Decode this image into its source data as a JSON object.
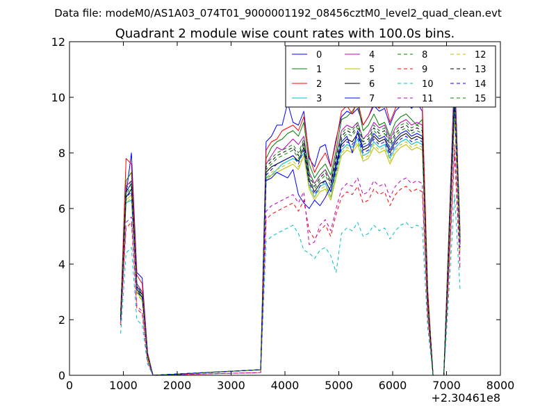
{
  "page": {
    "suptitle": "Data file: modeM0/AS1A03_074T01_9000001192_08456cztM0_level2_quad_clean.evt"
  },
  "chart_data": {
    "type": "line",
    "title": "Quadrant 2 module wise count rates with 100.0s bins.",
    "xlabel": "",
    "ylabel": "",
    "x_offset_label": "+2.30461e8",
    "xlim": [
      0,
      8000
    ],
    "ylim": [
      0,
      12
    ],
    "xticks": [
      0,
      1000,
      2000,
      3000,
      4000,
      5000,
      6000,
      7000,
      8000
    ],
    "yticks": [
      0,
      2,
      4,
      6,
      8,
      10,
      12
    ],
    "xtick_labels": [
      "0",
      "1000",
      "2000",
      "3000",
      "4000",
      "5000",
      "6000",
      "7000",
      "8000"
    ],
    "ytick_labels": [
      "0",
      "2",
      "4",
      "6",
      "8",
      "10",
      "12"
    ],
    "grid": false,
    "legend_position": "top-right",
    "x": [
      950,
      1050,
      1150,
      1250,
      1350,
      1450,
      1550,
      3550,
      3650,
      3750,
      3850,
      3950,
      4050,
      4150,
      4250,
      4350,
      4450,
      4550,
      4650,
      4750,
      4850,
      4950,
      5050,
      5150,
      5250,
      5350,
      5450,
      5550,
      5650,
      5750,
      5850,
      5950,
      6050,
      6150,
      6250,
      6350,
      6450,
      6550,
      6650,
      6750,
      6850,
      6950,
      7050,
      7150,
      7250
    ],
    "series": [
      {
        "name": "0",
        "color": "#0000ff",
        "dash": "solid",
        "values": [
          2.0,
          6.5,
          8.0,
          3.7,
          3.5,
          0.8,
          0.0,
          0.2,
          8.4,
          8.6,
          9.0,
          9.0,
          9.8,
          9.1,
          9.0,
          9.5,
          7.8,
          7.5,
          8.2,
          8.3,
          7.5,
          8.5,
          9.3,
          9.5,
          9.4,
          9.6,
          9.0,
          9.3,
          9.7,
          9.5,
          9.6,
          9.0,
          9.5,
          9.7,
          9.9,
          9.6,
          9.8,
          9.5,
          3.0,
          0.0,
          0.0,
          0.0,
          5.5,
          10.9,
          5.2
        ]
      },
      {
        "name": "1",
        "color": "#008000",
        "dash": "solid",
        "values": [
          2.3,
          7.0,
          7.3,
          3.3,
          3.0,
          0.6,
          0.0,
          0.2,
          7.8,
          8.2,
          8.4,
          8.5,
          8.7,
          8.8,
          8.6,
          9.1,
          7.6,
          7.1,
          7.4,
          7.6,
          7.2,
          8.1,
          9.2,
          9.3,
          9.5,
          9.8,
          8.8,
          9.0,
          9.4,
          9.0,
          9.1,
          8.6,
          9.1,
          9.3,
          9.4,
          9.2,
          9.0,
          9.2,
          2.8,
          0.0,
          0.0,
          0.0,
          5.0,
          10.6,
          4.9
        ]
      },
      {
        "name": "2",
        "color": "#ff0000",
        "dash": "solid",
        "values": [
          2.2,
          7.8,
          7.6,
          3.6,
          3.3,
          0.8,
          0.0,
          0.2,
          8.1,
          8.4,
          8.5,
          8.8,
          8.9,
          9.0,
          8.8,
          9.3,
          7.9,
          7.3,
          7.7,
          8.0,
          7.5,
          8.4,
          9.5,
          9.7,
          9.4,
          9.9,
          9.0,
          9.3,
          9.8,
          9.6,
          9.9,
          9.1,
          9.6,
          9.9,
          9.8,
          9.7,
          9.9,
          9.8,
          3.1,
          0.0,
          0.0,
          0.0,
          5.5,
          10.9,
          5.1
        ]
      },
      {
        "name": "3",
        "color": "#00bfbf",
        "dash": "solid",
        "values": [
          2.0,
          6.2,
          6.3,
          3.0,
          2.8,
          0.6,
          0.0,
          0.2,
          7.1,
          7.2,
          7.4,
          7.6,
          7.7,
          7.8,
          7.7,
          8.0,
          6.8,
          6.4,
          6.8,
          6.9,
          6.4,
          7.3,
          8.1,
          8.3,
          8.2,
          8.5,
          7.9,
          8.0,
          8.4,
          8.2,
          8.3,
          7.8,
          8.2,
          8.4,
          8.5,
          8.3,
          8.4,
          8.3,
          2.6,
          0.0,
          0.0,
          0.0,
          4.7,
          9.4,
          4.5
        ]
      },
      {
        "name": "4",
        "color": "#bf00bf",
        "dash": "solid",
        "values": [
          2.1,
          6.8,
          7.0,
          3.3,
          3.0,
          0.7,
          0.0,
          0.2,
          7.6,
          7.9,
          8.2,
          8.1,
          8.3,
          8.5,
          8.3,
          8.6,
          7.3,
          6.9,
          7.2,
          7.4,
          7.0,
          7.9,
          8.8,
          9.0,
          8.9,
          9.1,
          8.5,
          8.7,
          9.1,
          8.9,
          9.0,
          8.5,
          8.9,
          9.1,
          9.2,
          9.0,
          9.1,
          9.0,
          2.8,
          0.0,
          0.0,
          0.0,
          5.2,
          11.2,
          4.8
        ]
      },
      {
        "name": "5",
        "color": "#bfbf00",
        "dash": "solid",
        "values": [
          1.9,
          6.3,
          6.5,
          3.0,
          2.7,
          0.6,
          0.0,
          0.2,
          7.0,
          7.2,
          7.3,
          7.4,
          7.5,
          7.6,
          7.4,
          7.9,
          6.7,
          6.3,
          6.6,
          6.7,
          6.3,
          7.1,
          7.9,
          8.1,
          8.0,
          8.3,
          7.7,
          7.8,
          8.2,
          8.0,
          8.1,
          7.6,
          8.0,
          8.2,
          8.3,
          8.1,
          8.2,
          8.1,
          2.5,
          0.0,
          0.0,
          0.0,
          4.6,
          9.3,
          4.4
        ]
      },
      {
        "name": "6",
        "color": "#000000",
        "dash": "solid",
        "values": [
          2.0,
          6.4,
          6.7,
          3.1,
          2.8,
          0.7,
          0.0,
          0.2,
          7.3,
          7.5,
          7.6,
          7.7,
          7.8,
          7.9,
          7.7,
          8.2,
          7.0,
          6.6,
          6.9,
          7.0,
          6.6,
          7.5,
          8.3,
          8.5,
          8.4,
          8.7,
          8.1,
          8.2,
          8.6,
          8.4,
          8.5,
          8.0,
          8.4,
          8.6,
          8.7,
          8.5,
          8.6,
          8.5,
          2.7,
          0.0,
          0.0,
          0.0,
          4.9,
          9.8,
          4.7
        ]
      },
      {
        "name": "7",
        "color": "#0000ff",
        "dash": "solid",
        "values": [
          2.1,
          6.6,
          6.9,
          3.2,
          2.9,
          0.7,
          0.0,
          0.2,
          7.0,
          7.1,
          7.3,
          7.2,
          7.1,
          7.4,
          6.5,
          6.2,
          6.0,
          6.3,
          6.1,
          6.4,
          6.8,
          7.6,
          8.4,
          8.6,
          8.0,
          8.8,
          8.2,
          8.3,
          8.7,
          8.5,
          8.6,
          8.1,
          8.5,
          8.7,
          8.8,
          8.6,
          8.7,
          8.6,
          2.7,
          0.0,
          0.0,
          0.0,
          5.0,
          10.0,
          4.8
        ]
      },
      {
        "name": "8",
        "color": "#008000",
        "dash": "dashed",
        "values": [
          2.1,
          6.5,
          6.8,
          3.1,
          2.9,
          0.7,
          0.0,
          0.2,
          7.4,
          7.6,
          7.8,
          7.9,
          8.0,
          8.1,
          7.8,
          8.3,
          7.1,
          6.7,
          7.0,
          7.2,
          6.8,
          7.7,
          8.5,
          8.7,
          8.6,
          8.9,
          8.3,
          8.4,
          8.8,
          8.6,
          8.7,
          8.2,
          8.6,
          8.8,
          8.9,
          8.7,
          8.8,
          8.7,
          2.7,
          0.0,
          0.0,
          0.0,
          5.0,
          10.1,
          4.8
        ]
      },
      {
        "name": "9",
        "color": "#ff0000",
        "dash": "dashed",
        "values": [
          1.8,
          5.3,
          5.5,
          2.4,
          2.2,
          0.5,
          0.0,
          0.1,
          5.6,
          5.8,
          5.9,
          6.0,
          6.1,
          6.2,
          5.9,
          6.3,
          5.2,
          4.9,
          5.2,
          5.4,
          5.0,
          5.8,
          6.4,
          6.6,
          6.5,
          6.8,
          6.2,
          6.3,
          6.7,
          6.5,
          6.6,
          6.1,
          6.5,
          6.7,
          6.8,
          6.6,
          6.7,
          6.6,
          2.1,
          0.0,
          0.0,
          0.0,
          3.9,
          8.0,
          3.8
        ]
      },
      {
        "name": "10",
        "color": "#00bfbf",
        "dash": "dashed",
        "values": [
          1.5,
          4.4,
          4.6,
          2.0,
          1.8,
          0.4,
          0.0,
          0.1,
          4.8,
          5.0,
          5.1,
          5.2,
          5.3,
          5.4,
          5.1,
          4.5,
          4.4,
          4.2,
          4.5,
          4.6,
          4.3,
          3.7,
          5.1,
          5.3,
          5.2,
          5.5,
          5.0,
          5.1,
          5.4,
          5.2,
          5.3,
          4.9,
          5.2,
          5.4,
          5.5,
          5.3,
          5.4,
          5.3,
          1.7,
          0.0,
          0.0,
          0.0,
          3.2,
          6.5,
          3.1
        ]
      },
      {
        "name": "11",
        "color": "#bf00bf",
        "dash": "dashed",
        "values": [
          1.9,
          5.5,
          5.7,
          2.5,
          2.3,
          0.5,
          0.0,
          0.1,
          5.9,
          6.1,
          6.2,
          6.3,
          6.4,
          6.5,
          6.2,
          6.6,
          4.7,
          4.8,
          5.4,
          5.6,
          5.2,
          6.0,
          6.7,
          6.9,
          6.8,
          7.1,
          6.5,
          6.6,
          7.0,
          6.8,
          6.9,
          6.4,
          6.8,
          7.0,
          7.1,
          6.9,
          7.0,
          6.9,
          2.2,
          0.0,
          0.0,
          0.0,
          4.1,
          8.3,
          4.0
        ]
      },
      {
        "name": "12",
        "color": "#bfbf00",
        "dash": "dashed",
        "values": [
          2.0,
          6.2,
          6.4,
          2.9,
          2.7,
          0.6,
          0.0,
          0.2,
          7.1,
          7.3,
          7.4,
          7.5,
          7.6,
          7.7,
          7.5,
          7.9,
          6.8,
          6.4,
          6.7,
          6.8,
          6.4,
          7.2,
          8.0,
          8.2,
          8.1,
          8.4,
          7.8,
          7.9,
          8.3,
          8.1,
          8.2,
          7.7,
          8.1,
          8.3,
          8.4,
          8.2,
          8.3,
          8.2,
          2.6,
          0.0,
          0.0,
          0.0,
          4.7,
          9.5,
          4.5
        ]
      },
      {
        "name": "13",
        "color": "#000000",
        "dash": "dashed",
        "values": [
          2.1,
          6.6,
          6.9,
          3.2,
          2.9,
          0.7,
          0.0,
          0.2,
          7.5,
          7.7,
          7.9,
          8.0,
          8.1,
          8.2,
          7.9,
          8.4,
          7.2,
          6.8,
          7.1,
          7.3,
          6.9,
          7.8,
          8.6,
          8.8,
          8.7,
          9.0,
          8.4,
          8.5,
          8.9,
          8.7,
          8.8,
          8.3,
          8.7,
          8.9,
          9.0,
          8.8,
          8.9,
          8.8,
          2.8,
          0.0,
          0.0,
          0.0,
          5.1,
          10.3,
          4.9
        ]
      },
      {
        "name": "14",
        "color": "#0000ff",
        "dash": "dashed",
        "values": [
          2.0,
          6.4,
          6.6,
          3.0,
          2.8,
          0.7,
          0.0,
          0.2,
          7.2,
          7.4,
          7.6,
          7.7,
          7.8,
          7.9,
          7.6,
          8.1,
          6.9,
          6.5,
          6.8,
          7.0,
          6.6,
          7.4,
          8.2,
          8.4,
          8.3,
          8.6,
          8.0,
          8.1,
          8.5,
          8.3,
          8.4,
          7.9,
          8.3,
          8.5,
          8.6,
          8.4,
          8.5,
          8.4,
          2.7,
          0.0,
          0.0,
          0.0,
          4.9,
          9.7,
          4.6
        ]
      },
      {
        "name": "15",
        "color": "#008000",
        "dash": "dashed",
        "values": [
          2.2,
          6.7,
          7.0,
          3.2,
          3.0,
          0.7,
          0.0,
          0.2,
          7.6,
          7.8,
          8.0,
          8.1,
          8.2,
          8.3,
          8.0,
          8.5,
          7.3,
          6.9,
          7.2,
          7.4,
          7.0,
          7.9,
          8.7,
          8.9,
          8.8,
          9.1,
          8.5,
          8.6,
          9.0,
          8.8,
          8.9,
          8.4,
          8.8,
          9.0,
          9.1,
          8.9,
          9.0,
          8.9,
          2.8,
          0.0,
          0.0,
          0.0,
          5.2,
          10.5,
          5.0
        ]
      }
    ]
  }
}
